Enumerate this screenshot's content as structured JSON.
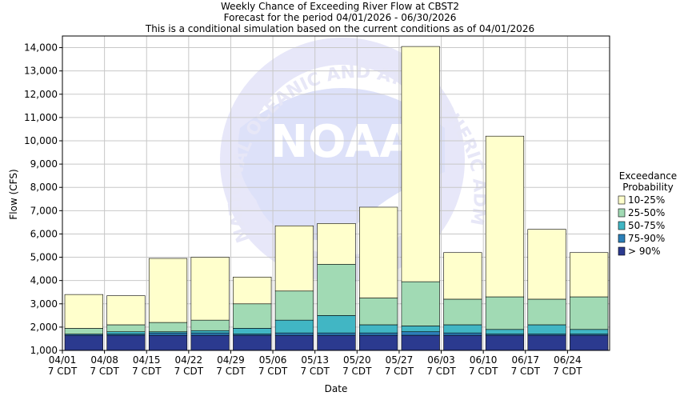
{
  "chart_data": {
    "type": "bar",
    "stacked": true,
    "title_lines": [
      "Weekly Chance of Exceeding River Flow at CBST2",
      "Forecast for the period 04/01/2026 - 06/30/2026",
      "This is a conditional simulation based on the current conditions as of 04/01/2026"
    ],
    "xlabel": "Date",
    "ylabel": "Flow (CFS)",
    "ylim": [
      1000,
      14500
    ],
    "yticks": [
      1000,
      2000,
      3000,
      4000,
      5000,
      6000,
      7000,
      8000,
      9000,
      10000,
      11000,
      12000,
      13000,
      14000
    ],
    "ytick_labels": [
      "1,000",
      "2,000",
      "3,000",
      "4,000",
      "5,000",
      "6,000",
      "7,000",
      "8,000",
      "9,000",
      "10,000",
      "11,000",
      "12,000",
      "13,000",
      "14,000"
    ],
    "categories": [
      "04/01",
      "04/08",
      "04/15",
      "04/22",
      "04/29",
      "05/06",
      "05/13",
      "05/20",
      "05/27",
      "06/03",
      "06/10",
      "06/17",
      "06/24"
    ],
    "category_sublabel": "7 CDT",
    "grid": true,
    "legend": {
      "title_line1": "Exceedance",
      "title_line2": "Probability",
      "placement": "right"
    },
    "series": [
      {
        "name": "> 90%",
        "color": "#2b3a8f",
        "top": [
          1650,
          1650,
          1650,
          1650,
          1650,
          1650,
          1650,
          1650,
          1650,
          1650,
          1650,
          1650,
          1650
        ]
      },
      {
        "name": "75-90%",
        "color": "#2c7fb8",
        "top": [
          1700,
          1700,
          1750,
          1750,
          1700,
          1750,
          1750,
          1750,
          1800,
          1750,
          1700,
          1700,
          1700
        ]
      },
      {
        "name": "50-75%",
        "color": "#41b6c4",
        "top": [
          1700,
          1800,
          1800,
          1850,
          1950,
          2300,
          2500,
          2100,
          2050,
          2100,
          1900,
          2100,
          1900
        ]
      },
      {
        "name": "25-50%",
        "color": "#a1dab4",
        "top": [
          1950,
          2100,
          2200,
          2300,
          3000,
          3550,
          4700,
          3250,
          3950,
          3200,
          3300,
          3200,
          3300
        ]
      },
      {
        "name": "10-25%",
        "color": "#ffffcc",
        "top": [
          3400,
          3350,
          4950,
          5000,
          4150,
          6350,
          6450,
          7150,
          14050,
          5200,
          10200,
          6200,
          5200
        ]
      }
    ],
    "legend_order": [
      "10-25%",
      "25-50%",
      "50-75%",
      "75-90%",
      "> 90%"
    ],
    "watermark": "NATIONAL OCEANIC AND ATMOSPHERIC ADMINISTRATION"
  }
}
